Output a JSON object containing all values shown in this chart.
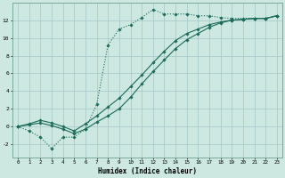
{
  "xlabel": "Humidex (Indice chaleur)",
  "ylabel": "",
  "bg_color": "#cce8e0",
  "grid_color": "#aacccc",
  "line_color": "#1a6b5a",
  "xlim": [
    -0.5,
    23.5
  ],
  "ylim": [
    -3.5,
    14.0
  ],
  "xticks": [
    0,
    1,
    2,
    3,
    4,
    5,
    6,
    7,
    8,
    9,
    10,
    11,
    12,
    13,
    14,
    15,
    16,
    17,
    18,
    19,
    20,
    21,
    22,
    23
  ],
  "yticks": [
    -2,
    0,
    2,
    4,
    6,
    8,
    10,
    12
  ],
  "line1_x": [
    0,
    1,
    2,
    3,
    4,
    5,
    6,
    7,
    8,
    9,
    10,
    11,
    12,
    13,
    14,
    15,
    16,
    17,
    18,
    19,
    20,
    21,
    22,
    23
  ],
  "line1_y": [
    0.0,
    -0.5,
    -1.2,
    -2.5,
    -1.2,
    -1.2,
    -0.3,
    2.5,
    9.2,
    11.0,
    11.5,
    12.3,
    13.2,
    12.7,
    12.7,
    12.7,
    12.5,
    12.5,
    12.3,
    12.2,
    12.2,
    12.2,
    12.2,
    12.5
  ],
  "line2_x": [
    0,
    1,
    2,
    3,
    4,
    5,
    6,
    7,
    8,
    9,
    10,
    11,
    12,
    13,
    14,
    15,
    16,
    17,
    18,
    19,
    20,
    21,
    22,
    23
  ],
  "line2_y": [
    0.0,
    0.2,
    0.4,
    0.1,
    -0.3,
    -0.8,
    -0.3,
    0.5,
    1.2,
    2.0,
    3.3,
    4.8,
    6.2,
    7.5,
    8.8,
    9.8,
    10.5,
    11.2,
    11.7,
    12.0,
    12.1,
    12.2,
    12.2,
    12.5
  ],
  "line3_x": [
    0,
    1,
    2,
    3,
    4,
    5,
    6,
    7,
    8,
    9,
    10,
    11,
    12,
    13,
    14,
    15,
    16,
    17,
    18,
    19,
    20,
    21,
    22,
    23
  ],
  "line3_y": [
    0.0,
    0.3,
    0.7,
    0.4,
    0.0,
    -0.5,
    0.3,
    1.2,
    2.2,
    3.2,
    4.5,
    5.8,
    7.2,
    8.5,
    9.7,
    10.5,
    11.0,
    11.5,
    11.8,
    12.0,
    12.1,
    12.2,
    12.2,
    12.5
  ]
}
